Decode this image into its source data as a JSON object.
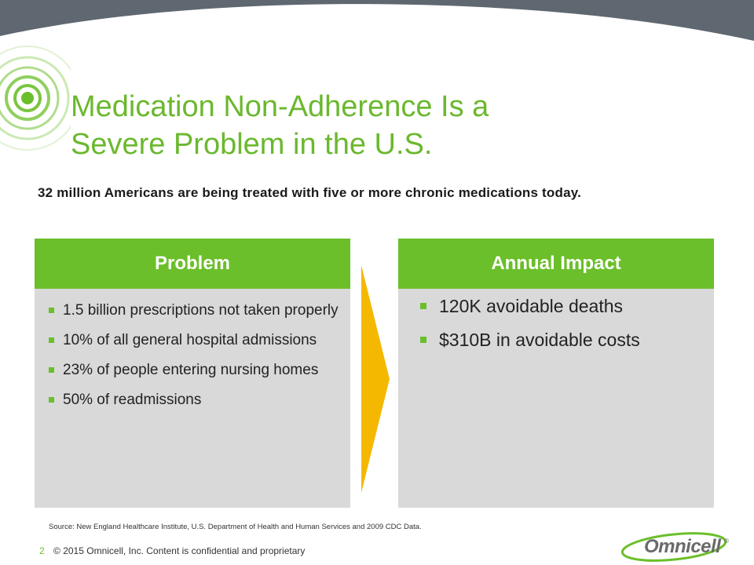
{
  "slide": {
    "title_line1": "Medication Non-Adherence Is a",
    "title_line2": "Severe Problem in the U.S.",
    "subtitle": "32 million Americans are being treated with five or more chronic medications today."
  },
  "problem": {
    "header": "Problem",
    "items": [
      "1.5 billion prescriptions not taken properly",
      "10% of all general hospital admissions",
      "23% of people entering nursing homes",
      "50% of readmissions"
    ]
  },
  "impact": {
    "header": "Annual Impact",
    "items": [
      "120K avoidable deaths",
      "$310B in avoidable costs"
    ]
  },
  "source": "Source:  New England Healthcare Institute, U.S. Department of Health and Human Services and 2009 CDC Data.",
  "footer": {
    "page_number": "2",
    "copyright": "© 2015 Omnicell, Inc.  Content is confidential and proprietary"
  },
  "logo": {
    "text": "Omnicell",
    "mark": "®"
  },
  "colors": {
    "band": "#5f6770",
    "green": "#6bbf2a",
    "title_green": "#6bb82e",
    "panel": "#d9d9d9",
    "arrow": "#f5b800"
  }
}
